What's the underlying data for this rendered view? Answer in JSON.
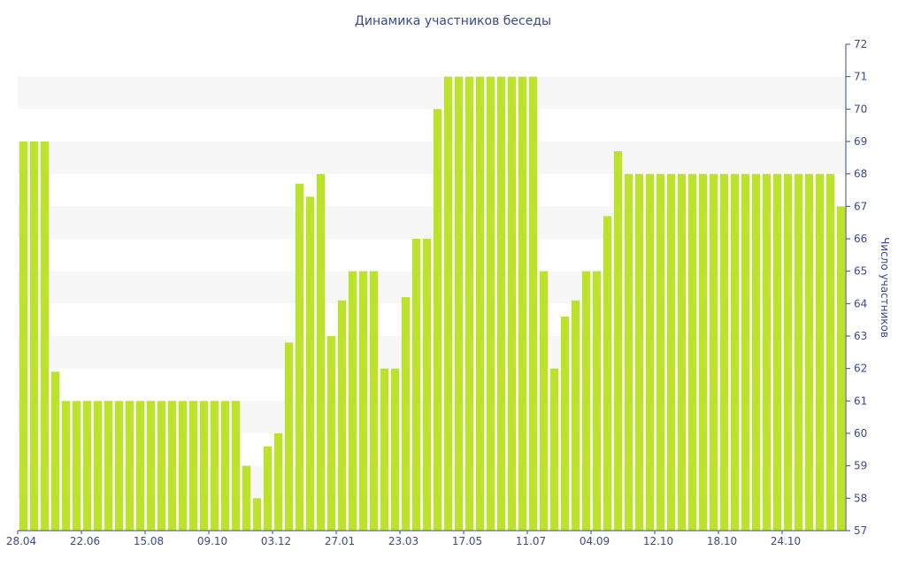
{
  "chart_data": {
    "type": "bar",
    "title": "Динамика участников беседы",
    "ylabel": "Число участников",
    "xlabel": "",
    "ylim": [
      57,
      72
    ],
    "yticks": [
      57,
      58,
      59,
      60,
      61,
      62,
      63,
      64,
      65,
      66,
      67,
      68,
      69,
      70,
      71,
      72
    ],
    "y_axis_side": "right",
    "grid": "alternating horizontal bands",
    "bar_color": "#bde22c",
    "x_tick_labels": [
      {
        "index": 0,
        "label": "28.04"
      },
      {
        "index": 6,
        "label": "22.06"
      },
      {
        "index": 12,
        "label": "15.08"
      },
      {
        "index": 18,
        "label": "09.10"
      },
      {
        "index": 24,
        "label": "03.12"
      },
      {
        "index": 30,
        "label": "27.01"
      },
      {
        "index": 36,
        "label": "23.03"
      },
      {
        "index": 42,
        "label": "17.05"
      },
      {
        "index": 48,
        "label": "11.07"
      },
      {
        "index": 54,
        "label": "04.09"
      },
      {
        "index": 60,
        "label": "12.10"
      },
      {
        "index": 66,
        "label": "18.10"
      },
      {
        "index": 72,
        "label": "24.10"
      }
    ],
    "values": [
      69,
      69,
      69,
      61.9,
      61,
      61,
      61,
      61,
      61,
      61,
      61,
      61,
      61,
      61,
      61,
      61,
      61,
      61,
      61,
      61,
      61,
      59,
      58,
      59.6,
      60,
      62.8,
      67.7,
      67.3,
      68,
      63,
      64.1,
      65,
      65,
      65,
      62,
      62,
      64.2,
      66,
      66,
      70,
      71,
      71,
      71,
      71,
      71,
      71,
      71,
      71,
      71,
      65,
      62,
      63.6,
      64.1,
      65,
      65,
      66.7,
      68.7,
      68,
      68,
      68,
      68,
      68,
      68,
      68,
      68,
      68,
      68,
      68,
      68,
      68,
      68,
      68,
      68,
      68,
      68,
      68,
      68,
      67
    ]
  }
}
